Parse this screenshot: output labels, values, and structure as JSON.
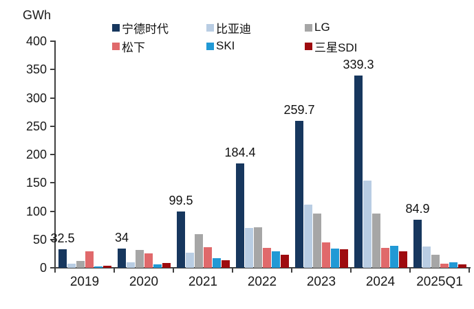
{
  "chart": {
    "unit_label": "GWh"
  },
  "chart_data": {
    "type": "bar",
    "title": "",
    "unit": "GWh",
    "xlabel": "",
    "ylabel": "GWh",
    "ylim": [
      0,
      400
    ],
    "ytick_step": 50,
    "grid": false,
    "legend_position": "top",
    "categories": [
      "2019",
      "2020",
      "2021",
      "2022",
      "2023",
      "2024",
      "2025Q1"
    ],
    "series": [
      {
        "key": "catl",
        "name": "宁德时代",
        "color": "#17375E",
        "values": [
          32.5,
          34,
          99.5,
          184.4,
          259.7,
          339.3,
          84.9
        ],
        "value_labels": [
          "32.5",
          "34",
          "99.5",
          "184.4",
          "259.7",
          "339.3",
          "84.9"
        ]
      },
      {
        "key": "byd",
        "name": "比亚迪",
        "color": "#B9CDE3",
        "values": [
          7,
          9.6,
          26.3,
          70.3,
          111.4,
          153.7,
          38.1
        ]
      },
      {
        "key": "lg",
        "name": "LG",
        "color": "#A6A6A6",
        "values": [
          12.3,
          31,
          59.8,
          71.5,
          95.8,
          96.1,
          22.7
        ]
      },
      {
        "key": "panasonic",
        "name": "松下",
        "color": "#E0696B",
        "values": [
          28.5,
          25,
          36.1,
          35.5,
          44.9,
          34.9,
          7
        ]
      },
      {
        "key": "ski",
        "name": "SKI",
        "color": "#2199D5",
        "values": [
          1.9,
          6.5,
          16.7,
          29,
          34.4,
          39,
          10.2
        ]
      },
      {
        "key": "samsung-sdi",
        "name": "三星SDI",
        "color": "#9E0B0F",
        "values": [
          4.2,
          8.2,
          13.2,
          23.5,
          32.6,
          28.9,
          6.6
        ]
      }
    ]
  }
}
